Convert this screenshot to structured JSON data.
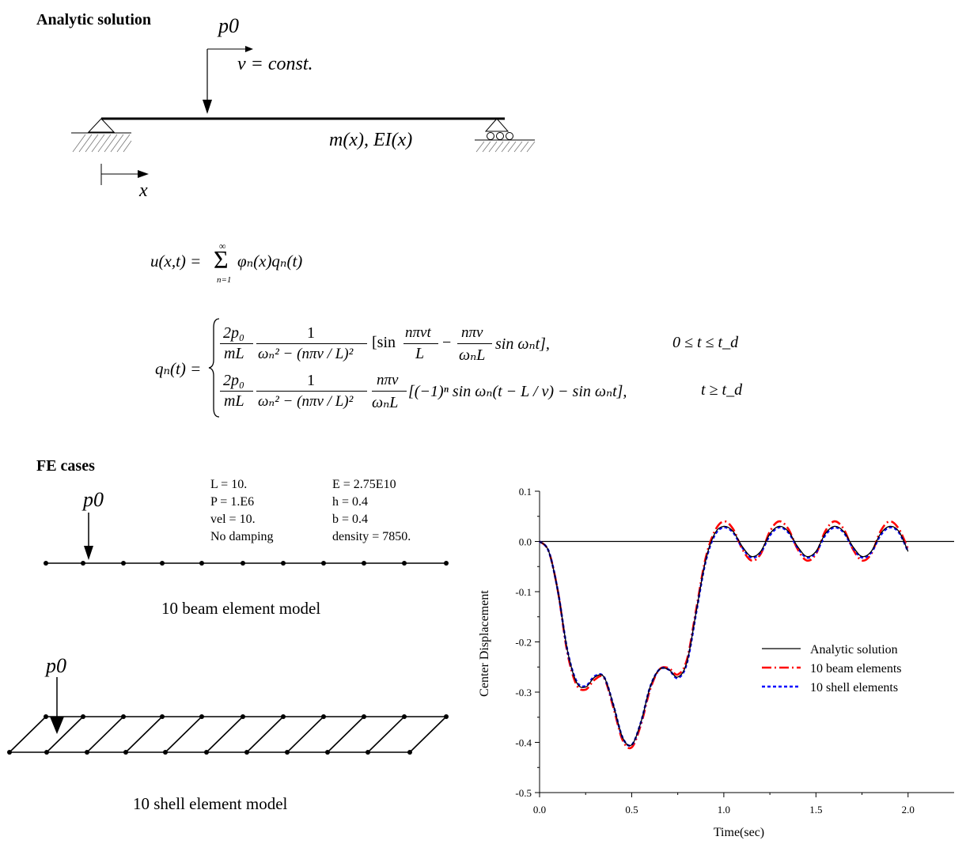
{
  "sections": {
    "analytic_heading": "Analytic solution",
    "fe_heading": "FE cases"
  },
  "beam_diagram": {
    "load_label": "p0",
    "velocity_label": "v = const.",
    "property_label": "m(x), EI(x)",
    "axis_label": "x"
  },
  "equations": {
    "u_lhs": "u(x,t) =",
    "u_sum_top": "∞",
    "u_sum_bottom": "n=1",
    "u_rhs": "φₙ(x)qₙ(t)",
    "q_lhs": "qₙ(t) =",
    "case1": {
      "frac1_num": "2p₀",
      "frac1_den": "mL",
      "frac2_num": "1",
      "frac2_den": "ωₙ² − (nπv / L)²",
      "bracket_open": "[sin",
      "frac3_num": "nπvt",
      "frac3_den": "L",
      "minus": "−",
      "frac4_num": "nπv",
      "frac4_den": "ωₙL",
      "tail": "sin ωₙt],",
      "condition": "0 ≤ t ≤ t_d"
    },
    "case2": {
      "frac1_num": "2p₀",
      "frac1_den": "mL",
      "frac2_num": "1",
      "frac2_den": "ωₙ² − (nπv / L)²",
      "frac3_num": "nπv",
      "frac3_den": "ωₙL",
      "tail": "[(−1)ⁿ sin ωₙ(t − L / v) − sin ωₙt],",
      "condition": "t ≥ t_d"
    }
  },
  "fe_params": {
    "left": [
      "L = 10.",
      "P = 1.E6",
      "vel = 10.",
      "No damping"
    ],
    "right": [
      "E = 2.75E10",
      "h = 0.4",
      "b = 0.4",
      "density = 7850."
    ]
  },
  "fe_models": {
    "beam_load_label": "p0",
    "beam_caption": "10 beam element model",
    "shell_load_label": "p0",
    "shell_caption": "10 shell element model"
  },
  "chart_data": {
    "type": "line",
    "title": "",
    "xlabel": "Time(sec)",
    "ylabel": "Center Displacement",
    "xlim": [
      0.0,
      2.25
    ],
    "ylim": [
      -0.5,
      0.1
    ],
    "xticks": [
      0.0,
      0.5,
      1.0,
      1.5,
      2.0
    ],
    "xtick_labels": [
      "0.0",
      "0.5",
      "1.0",
      "1.5",
      "2.0"
    ],
    "yticks": [
      0.1,
      0.0,
      -0.1,
      -0.2,
      -0.3,
      -0.4,
      -0.5
    ],
    "ytick_labels": [
      "0.1",
      "0.0",
      "-0.1",
      "-0.2",
      "-0.3",
      "-0.4",
      "-0.5"
    ],
    "zero_line": true,
    "grid": false,
    "legend_position": "right-center",
    "series": [
      {
        "name": "Analytic solution",
        "color": "#000000",
        "style": "solid",
        "x": [
          0.0,
          0.05,
          0.1,
          0.15,
          0.2,
          0.25,
          0.3,
          0.35,
          0.4,
          0.45,
          0.5,
          0.55,
          0.6,
          0.65,
          0.7,
          0.75,
          0.8,
          0.85,
          0.9,
          0.95,
          1.0,
          1.05,
          1.1,
          1.15,
          1.2,
          1.25,
          1.3,
          1.35,
          1.4,
          1.45,
          1.5,
          1.55,
          1.6,
          1.65,
          1.7,
          1.75,
          1.8,
          1.85,
          1.9,
          1.95,
          2.0
        ],
        "y": [
          0.0,
          -0.02,
          -0.1,
          -0.215,
          -0.28,
          -0.29,
          -0.27,
          -0.27,
          -0.325,
          -0.39,
          -0.405,
          -0.36,
          -0.29,
          -0.255,
          -0.255,
          -0.27,
          -0.24,
          -0.14,
          -0.04,
          0.015,
          0.03,
          0.02,
          -0.01,
          -0.03,
          -0.02,
          0.015,
          0.03,
          0.02,
          -0.01,
          -0.03,
          -0.02,
          0.015,
          0.03,
          0.02,
          -0.01,
          -0.03,
          -0.02,
          0.015,
          0.03,
          0.02,
          -0.02
        ]
      },
      {
        "name": "10 beam elements",
        "color": "#ff0000",
        "style": "dashdot",
        "x": [
          0.0,
          0.05,
          0.1,
          0.15,
          0.2,
          0.25,
          0.3,
          0.35,
          0.4,
          0.45,
          0.5,
          0.55,
          0.6,
          0.65,
          0.7,
          0.75,
          0.8,
          0.85,
          0.9,
          0.95,
          1.0,
          1.05,
          1.1,
          1.15,
          1.2,
          1.25,
          1.3,
          1.35,
          1.4,
          1.45,
          1.5,
          1.55,
          1.6,
          1.65,
          1.7,
          1.75,
          1.8,
          1.85,
          1.9,
          1.95,
          2.0
        ],
        "y": [
          0.0,
          -0.02,
          -0.1,
          -0.22,
          -0.285,
          -0.295,
          -0.275,
          -0.272,
          -0.33,
          -0.395,
          -0.41,
          -0.365,
          -0.295,
          -0.255,
          -0.252,
          -0.265,
          -0.235,
          -0.135,
          -0.035,
          0.02,
          0.04,
          0.025,
          -0.015,
          -0.038,
          -0.025,
          0.02,
          0.04,
          0.025,
          -0.015,
          -0.038,
          -0.025,
          0.02,
          0.04,
          0.025,
          -0.015,
          -0.038,
          -0.025,
          0.02,
          0.04,
          0.025,
          -0.015
        ]
      },
      {
        "name": "10 shell elements",
        "color": "#0000ff",
        "style": "dotted",
        "x": [
          0.0,
          0.05,
          0.1,
          0.15,
          0.2,
          0.25,
          0.3,
          0.35,
          0.4,
          0.45,
          0.5,
          0.55,
          0.6,
          0.65,
          0.7,
          0.75,
          0.8,
          0.85,
          0.9,
          0.95,
          1.0,
          1.05,
          1.1,
          1.15,
          1.2,
          1.25,
          1.3,
          1.35,
          1.4,
          1.45,
          1.5,
          1.55,
          1.6,
          1.65,
          1.7,
          1.75,
          1.8,
          1.85,
          1.9,
          1.95,
          2.0
        ],
        "y": [
          0.0,
          -0.02,
          -0.1,
          -0.215,
          -0.278,
          -0.288,
          -0.268,
          -0.27,
          -0.325,
          -0.39,
          -0.405,
          -0.36,
          -0.29,
          -0.255,
          -0.255,
          -0.272,
          -0.242,
          -0.142,
          -0.042,
          0.012,
          0.028,
          0.018,
          -0.012,
          -0.032,
          -0.022,
          0.012,
          0.028,
          0.018,
          -0.012,
          -0.032,
          -0.022,
          0.012,
          0.028,
          0.018,
          -0.012,
          -0.032,
          -0.022,
          0.012,
          0.028,
          0.018,
          -0.02
        ]
      }
    ]
  }
}
